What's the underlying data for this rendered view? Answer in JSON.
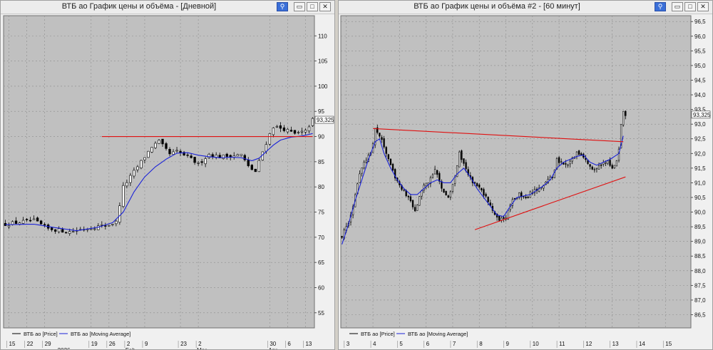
{
  "windows": [
    {
      "title": "ВТБ ао График цены и объёма - [Дневной]",
      "legend": {
        "price": "ВТБ ао [Price]",
        "ma": "ВТБ ао [Moving Average]"
      },
      "last_price_label": "93,325",
      "chart_data": {
        "type": "line",
        "ylim": [
          52,
          114
        ],
        "y_ticks": [
          "55",
          "60",
          "65",
          "70",
          "75",
          "80",
          "85",
          "90",
          "95",
          "100",
          "105",
          "110"
        ],
        "x_ticks": [
          {
            "label": "15",
            "i": 1
          },
          {
            "label": "22",
            "i": 6
          },
          {
            "label": "29",
            "i": 11
          },
          {
            "label": "19",
            "i": 24
          },
          {
            "label": "26",
            "i": 29
          },
          {
            "label": "2",
            "i": 34
          },
          {
            "label": "9",
            "i": 39
          },
          {
            "label": "23",
            "i": 49
          },
          {
            "label": "2",
            "i": 54
          },
          {
            "label": "30",
            "i": 74
          },
          {
            "label": "6",
            "i": 79
          },
          {
            "label": "13",
            "i": 84
          }
        ],
        "x_month_labels": [
          {
            "label": "2026",
            "i": 15
          },
          {
            "label": "Feb",
            "i": 34
          },
          {
            "label": "Mar",
            "i": 54
          },
          {
            "label": "Apr",
            "i": 74
          }
        ],
        "x_count": 87,
        "price_anchors": [
          [
            0,
            72.6
          ],
          [
            6,
            73.2
          ],
          [
            8,
            73.3
          ],
          [
            12,
            71.7
          ],
          [
            18,
            71.1
          ],
          [
            22,
            71.7
          ],
          [
            29,
            72.5
          ],
          [
            31,
            73
          ],
          [
            33,
            80
          ],
          [
            35,
            82
          ],
          [
            38,
            85
          ],
          [
            41,
            88
          ],
          [
            43,
            89
          ],
          [
            46,
            86.5
          ],
          [
            48,
            87
          ],
          [
            51,
            86
          ],
          [
            54,
            84.5
          ],
          [
            57,
            86.5
          ],
          [
            60,
            86
          ],
          [
            63,
            86.2
          ],
          [
            66,
            86.4
          ],
          [
            68,
            84
          ],
          [
            70,
            83
          ],
          [
            72,
            87
          ],
          [
            74,
            90.5
          ],
          [
            75,
            92
          ],
          [
            78,
            91.5
          ],
          [
            81,
            90.5
          ],
          [
            84,
            91
          ],
          [
            86,
            93.325
          ]
        ],
        "ma_anchors": [
          [
            0,
            72.5
          ],
          [
            8,
            72.6
          ],
          [
            14,
            71.9
          ],
          [
            20,
            71.3
          ],
          [
            26,
            72
          ],
          [
            30,
            72.9
          ],
          [
            33,
            75
          ],
          [
            36,
            79
          ],
          [
            39,
            82
          ],
          [
            42,
            84
          ],
          [
            45,
            85.5
          ],
          [
            48,
            86.7
          ],
          [
            51,
            86.8
          ],
          [
            54,
            86.3
          ],
          [
            57,
            86
          ],
          [
            60,
            85.8
          ],
          [
            63,
            85.9
          ],
          [
            66,
            85.8
          ],
          [
            69,
            85.2
          ],
          [
            71,
            85.7
          ],
          [
            73,
            87
          ],
          [
            75,
            88.3
          ],
          [
            77,
            89.3
          ],
          [
            80,
            89.9
          ],
          [
            83,
            90.1
          ],
          [
            86,
            90.6
          ]
        ],
        "trendlines": [
          {
            "x1": 27,
            "y1": 90,
            "x2": 86,
            "y2": 90
          }
        ]
      }
    },
    {
      "title": "ВТБ ао График цены и объёма #2 - [60 минут]",
      "legend": {
        "price": "ВТБ ао [Price]",
        "ma": "ВТБ ао [Moving Average]"
      },
      "last_price_label": "93,325",
      "chart_data": {
        "type": "line",
        "ylim": [
          86.05,
          96.7
        ],
        "y_ticks": [
          "86,5",
          "87,0",
          "87,5",
          "88,0",
          "88,5",
          "89,0",
          "89,5",
          "90,0",
          "90,5",
          "91,0",
          "91,5",
          "92,0",
          "92,5",
          "93,0",
          "93,5",
          "94,0",
          "94,5",
          "95,0",
          "95,5",
          "96,0",
          "96,5"
        ],
        "x_ticks": [
          {
            "label": "3",
            "i": 2
          },
          {
            "label": "4",
            "i": 14
          },
          {
            "label": "5",
            "i": 26
          },
          {
            "label": "6",
            "i": 38
          },
          {
            "label": "7",
            "i": 50
          },
          {
            "label": "8",
            "i": 62
          },
          {
            "label": "9",
            "i": 74
          },
          {
            "label": "10",
            "i": 86
          },
          {
            "label": "11",
            "i": 98
          },
          {
            "label": "12",
            "i": 110
          },
          {
            "label": "13",
            "i": 122
          },
          {
            "label": "14",
            "i": 134
          },
          {
            "label": "15",
            "i": 146
          }
        ],
        "x_month_labels": [],
        "x_count": 158,
        "price_anchors": [
          [
            0,
            89.2
          ],
          [
            3,
            89.6
          ],
          [
            5,
            90.2
          ],
          [
            7,
            91
          ],
          [
            9,
            91.5
          ],
          [
            11,
            91.8
          ],
          [
            13,
            92
          ],
          [
            15,
            92.8
          ],
          [
            18,
            92.5
          ],
          [
            21,
            91.8
          ],
          [
            24,
            91.2
          ],
          [
            27,
            90.8
          ],
          [
            30,
            90.5
          ],
          [
            33,
            90
          ],
          [
            36,
            90.8
          ],
          [
            39,
            91
          ],
          [
            42,
            91.5
          ],
          [
            45,
            90.8
          ],
          [
            48,
            90.5
          ],
          [
            51,
            91.2
          ],
          [
            53,
            92
          ],
          [
            56,
            91.5
          ],
          [
            59,
            91
          ],
          [
            62,
            90.8
          ],
          [
            65,
            90.5
          ],
          [
            68,
            90
          ],
          [
            71,
            89.7
          ],
          [
            74,
            89.8
          ],
          [
            77,
            90.4
          ],
          [
            80,
            90.6
          ],
          [
            83,
            90.5
          ],
          [
            86,
            90.7
          ],
          [
            89,
            90.8
          ],
          [
            92,
            91
          ],
          [
            95,
            91.2
          ],
          [
            97,
            91.8
          ],
          [
            100,
            91.6
          ],
          [
            103,
            91.7
          ],
          [
            106,
            92
          ],
          [
            109,
            91.9
          ],
          [
            112,
            91.5
          ],
          [
            114,
            91.4
          ],
          [
            117,
            91.6
          ],
          [
            120,
            91.8
          ],
          [
            122,
            91.5
          ],
          [
            124,
            91.8
          ],
          [
            125,
            92.2
          ],
          [
            126,
            93
          ],
          [
            127,
            93.5
          ],
          [
            128,
            93.325
          ]
        ],
        "ma_anchors": [
          [
            0,
            88.9
          ],
          [
            3,
            89.6
          ],
          [
            6,
            90.4
          ],
          [
            9,
            91.1
          ],
          [
            12,
            91.8
          ],
          [
            15,
            92.4
          ],
          [
            17,
            92.5
          ],
          [
            19,
            92
          ],
          [
            22,
            91.5
          ],
          [
            25,
            91.1
          ],
          [
            28,
            90.8
          ],
          [
            31,
            90.6
          ],
          [
            34,
            90.6
          ],
          [
            37,
            90.8
          ],
          [
            40,
            91
          ],
          [
            43,
            91.1
          ],
          [
            46,
            91
          ],
          [
            49,
            91
          ],
          [
            52,
            91.3
          ],
          [
            55,
            91.5
          ],
          [
            58,
            91.2
          ],
          [
            61,
            90.8
          ],
          [
            64,
            90.5
          ],
          [
            67,
            90.2
          ],
          [
            70,
            89.9
          ],
          [
            73,
            89.85
          ],
          [
            76,
            90.2
          ],
          [
            79,
            90.5
          ],
          [
            82,
            90.55
          ],
          [
            85,
            90.6
          ],
          [
            88,
            90.75
          ],
          [
            91,
            90.9
          ],
          [
            94,
            91.1
          ],
          [
            97,
            91.5
          ],
          [
            100,
            91.7
          ],
          [
            103,
            91.8
          ],
          [
            106,
            91.9
          ],
          [
            109,
            91.95
          ],
          [
            112,
            91.7
          ],
          [
            115,
            91.6
          ],
          [
            118,
            91.7
          ],
          [
            121,
            91.8
          ],
          [
            123,
            91.9
          ],
          [
            125,
            92
          ],
          [
            126,
            92.3
          ],
          [
            127,
            92.6
          ]
        ],
        "trendlines": [
          {
            "x1": 14,
            "y1": 92.85,
            "x2": 127,
            "y2": 92.4
          },
          {
            "x1": 60,
            "y1": 89.4,
            "x2": 128,
            "y2": 91.2
          }
        ]
      }
    }
  ]
}
